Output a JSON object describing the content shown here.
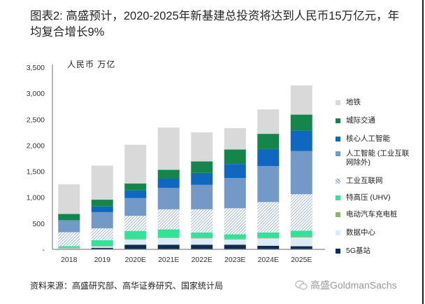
{
  "title": "图表2: 高盛预计，2020-2025年新基建总投资将达到人民币15万亿元，年均复合增长9%",
  "unit_label": "人民币  万亿",
  "source": "资料来源：高盛研究部、高华证券研究、国家统计局",
  "brand": "高盛GoldmanSachs",
  "chart_data": {
    "type": "bar",
    "stacked": true,
    "title": "图表2: 高盛预计，2020-2025年新基建总投资将达到人民币15万亿元，年均复合增长9%",
    "xlabel": "",
    "ylabel": "人民币  万亿",
    "ylim": [
      0,
      3500
    ],
    "yticks": [
      0,
      500,
      1000,
      1500,
      2000,
      2500,
      3000,
      3500
    ],
    "ytick_labels": [
      "-",
      "500",
      "1,000",
      "1,500",
      "2,000",
      "2,500",
      "3,000",
      "3,500"
    ],
    "grid": false,
    "legend_position": "right",
    "categories": [
      "2018",
      "2019",
      "2020E",
      "2021E",
      "2022E",
      "2023E",
      "2024E",
      "2025E"
    ],
    "series": [
      {
        "name": "5G基站",
        "color": "#0b2d52",
        "pattern": "solid",
        "values": [
          0,
          30,
          90,
          90,
          90,
          90,
          70,
          60
        ]
      },
      {
        "name": "数据中心",
        "color": "#dcebf7",
        "pattern": "solid",
        "values": [
          20,
          25,
          100,
          130,
          120,
          100,
          140,
          170
        ]
      },
      {
        "name": "电动汽车充电桩",
        "color": "#8fb36b",
        "pattern": "solid",
        "values": [
          10,
          10,
          15,
          15,
          15,
          15,
          15,
          20
        ]
      },
      {
        "name": "特高压 (UHV)",
        "color": "#2fe39a",
        "pattern": "solid",
        "values": [
          30,
          110,
          150,
          150,
          100,
          85,
          100,
          110
        ]
      },
      {
        "name": "工业互联网",
        "color": "#8aa7c4",
        "pattern": "hatch",
        "values": [
          270,
          230,
          290,
          385,
          445,
          500,
          585,
          700
        ]
      },
      {
        "name": "人工智能 (工业互联网除外)",
        "color": "#7399c6",
        "pattern": "solid",
        "values": [
          230,
          310,
          340,
          410,
          470,
          580,
          690,
          830
        ]
      },
      {
        "name": "核心人工智能",
        "color": "#0f67c0",
        "pattern": "solid",
        "values": [
          0,
          110,
          150,
          180,
          230,
          270,
          330,
          390
        ]
      },
      {
        "name": "城际交通",
        "color": "#14864c",
        "pattern": "solid",
        "values": [
          120,
          130,
          130,
          170,
          220,
          280,
          290,
          310
        ]
      },
      {
        "name": "地铁",
        "color": "#d9d9d9",
        "pattern": "solid",
        "values": [
          570,
          655,
          745,
          810,
          560,
          410,
          470,
          560
        ]
      }
    ],
    "legend_order": [
      "地铁",
      "城际交通",
      "核心人工智能",
      "人工智能 (工业互联网除外)",
      "工业互联网",
      "特高压 (UHV)",
      "电动汽车充电桩",
      "数据中心",
      "5G基站"
    ]
  }
}
